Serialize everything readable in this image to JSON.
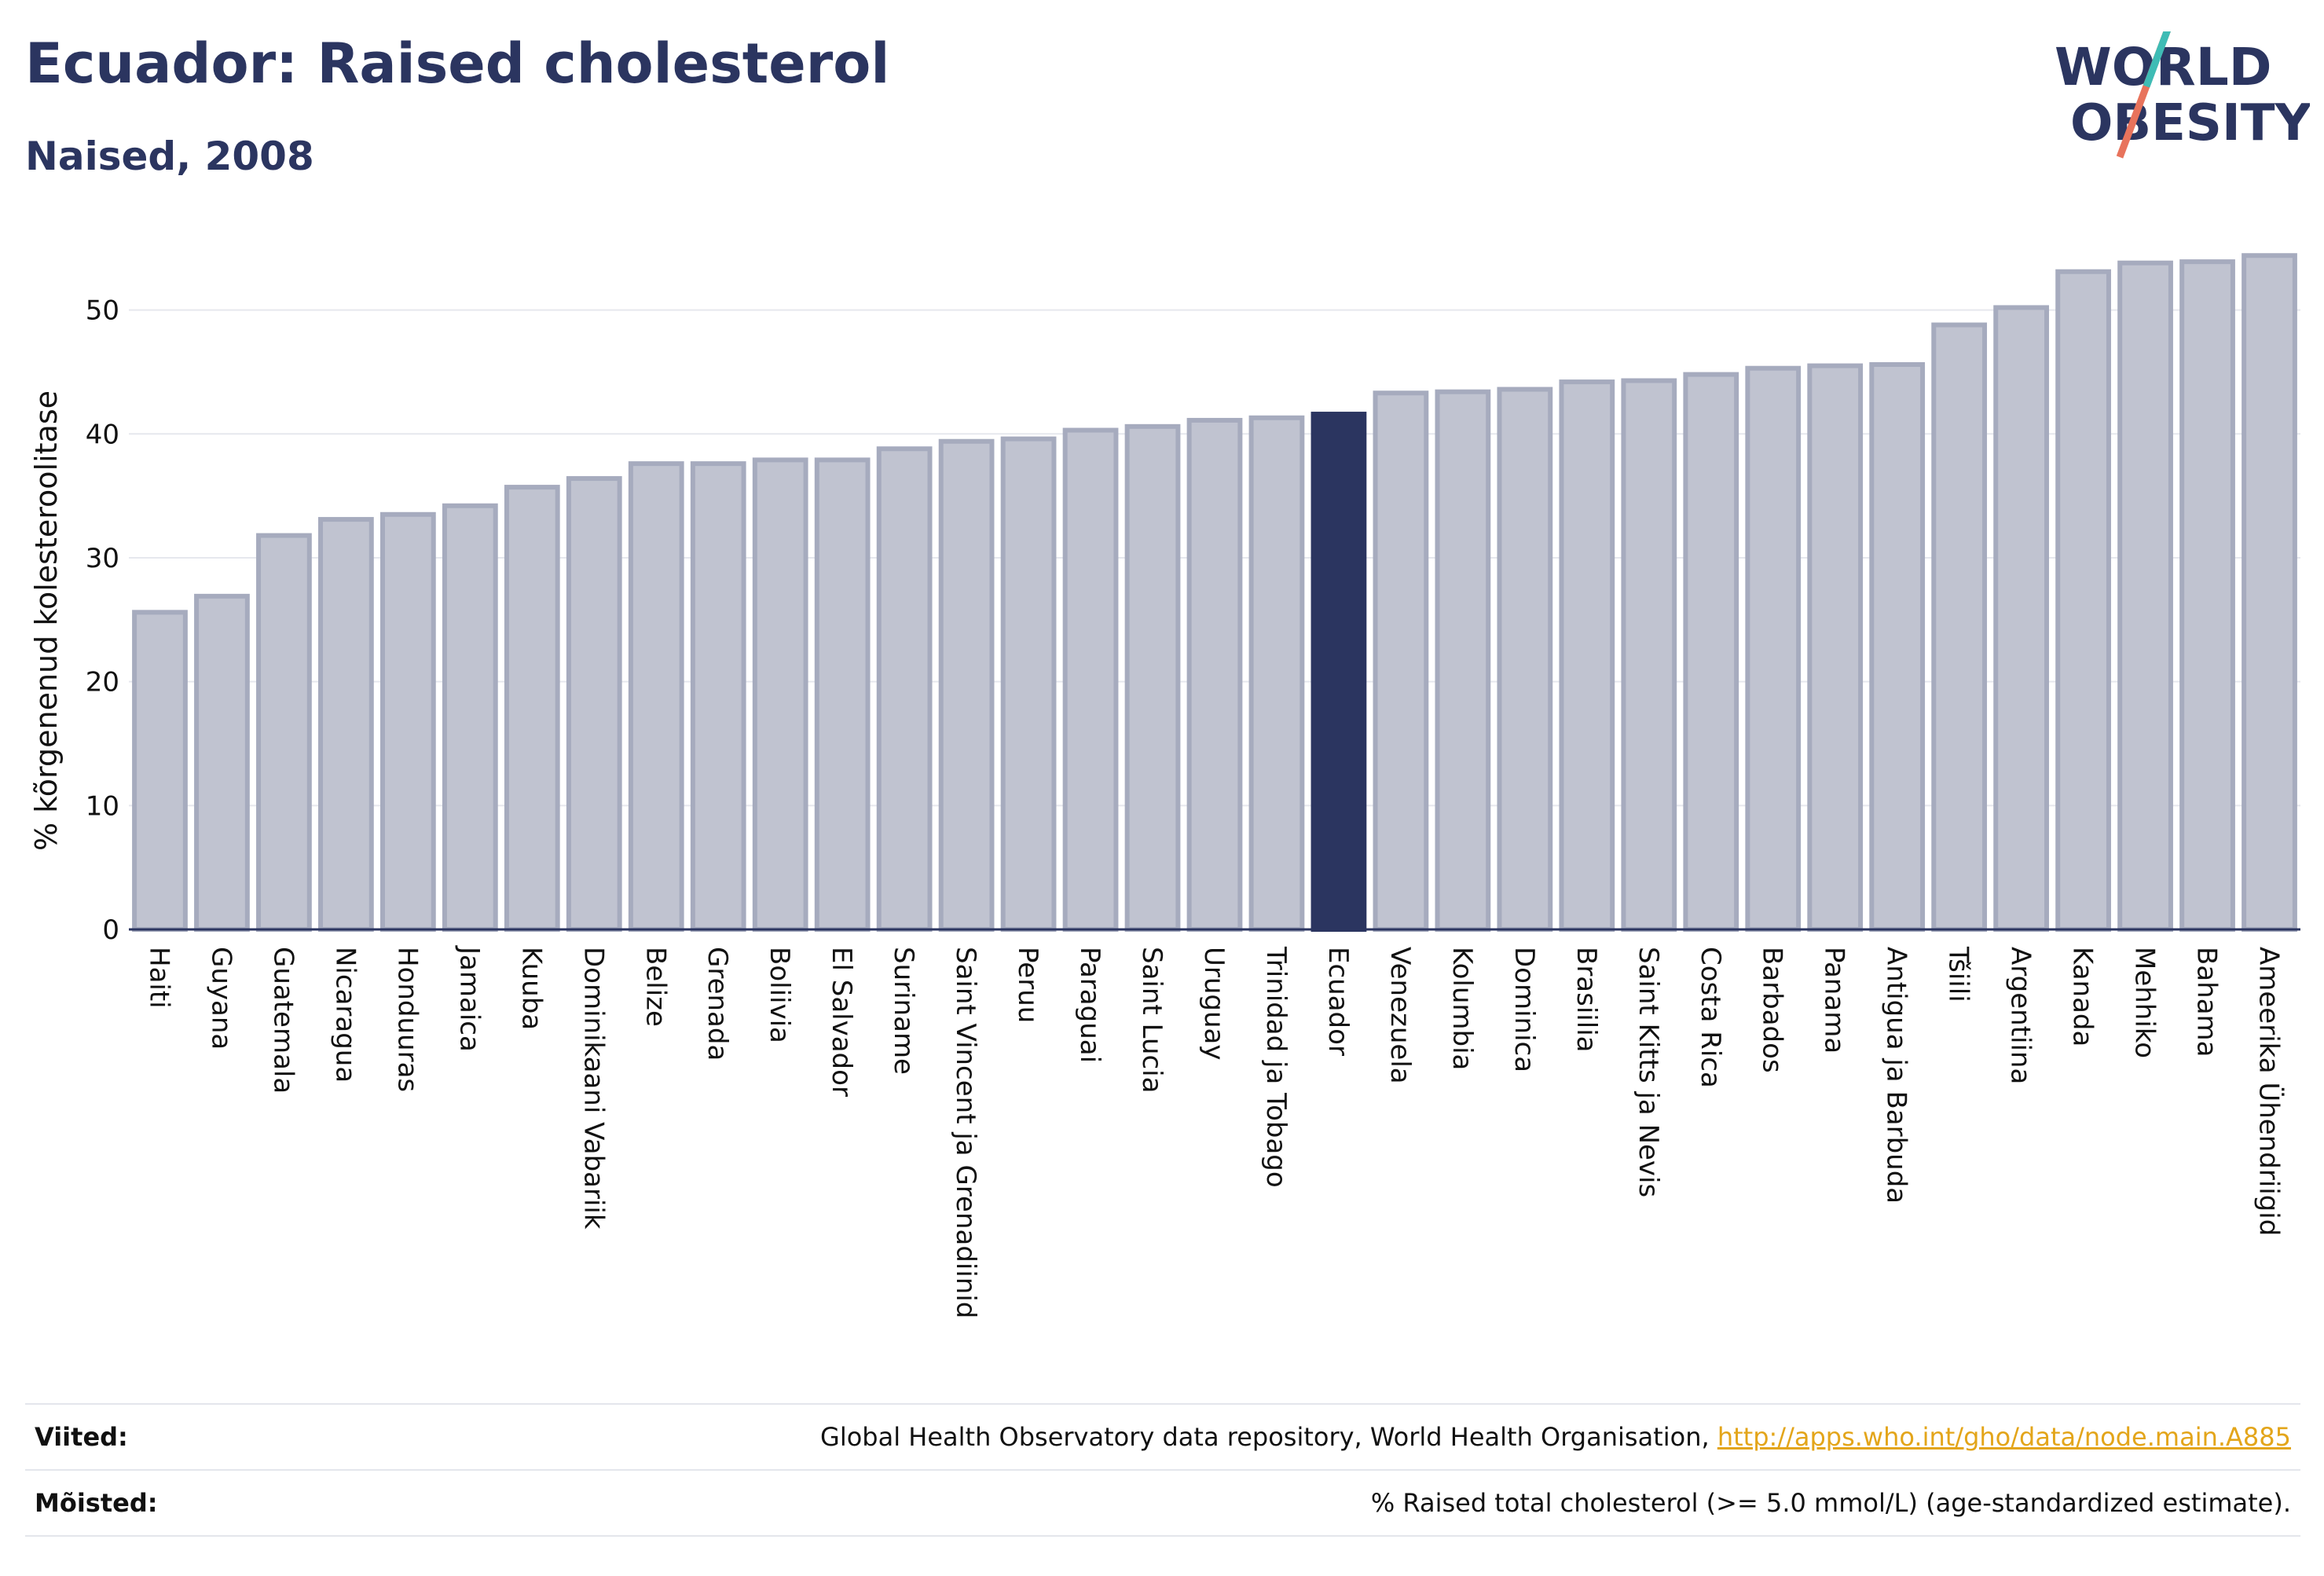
{
  "header": {
    "title": "Ecuador: Raised cholesterol",
    "subtitle": "Naised, 2008",
    "logo_line1": "WORLD",
    "logo_line2": "OBESITY"
  },
  "chart_data": {
    "type": "bar",
    "title": "Ecuador: Raised cholesterol",
    "subtitle": "Naised, 2008",
    "xlabel": "",
    "ylabel": "% kõrgenenud kolesteroolitase",
    "ylim": [
      0,
      56
    ],
    "yticks": [
      0,
      10,
      20,
      30,
      40,
      50
    ],
    "grid": true,
    "highlight": "Ecuador",
    "colors": {
      "bar": "#c0c3d0",
      "bar_edge": "#a6abbe",
      "highlight": "#2b3560",
      "grid": "#e6e8ee",
      "axis": "#2b3560"
    },
    "categories": [
      "Haiti",
      "Guyana",
      "Guatemala",
      "Nicaragua",
      "Honduuras",
      "Jamaica",
      "Kuuba",
      "Dominikaani Vabariik",
      "Belize",
      "Grenada",
      "Boliivia",
      "El Salvador",
      "Suriname",
      "Saint Vincent ja Grenadiinid",
      "Peruu",
      "Paraguai",
      "Saint Lucia",
      "Uruguay",
      "Trinidad ja Tobago",
      "Ecuador",
      "Venezuela",
      "Kolumbia",
      "Dominica",
      "Brasiilia",
      "Saint Kitts ja Nevis",
      "Costa Rica",
      "Barbados",
      "Panama",
      "Antigua ja Barbuda",
      "Tšiili",
      "Argentiina",
      "Kanada",
      "Mehhiko",
      "Bahama",
      "Ameerika Ühendriigid"
    ],
    "values": [
      25.6,
      26.9,
      31.8,
      33.1,
      33.5,
      34.2,
      35.7,
      36.4,
      37.6,
      37.6,
      37.9,
      37.9,
      38.8,
      39.4,
      39.6,
      40.3,
      40.6,
      41.1,
      41.3,
      41.6,
      43.3,
      43.4,
      43.6,
      44.2,
      44.3,
      44.8,
      45.3,
      45.5,
      45.6,
      48.8,
      50.2,
      53.1,
      53.8,
      53.9,
      54.4
    ]
  },
  "footer": {
    "sources_label": "Viited:",
    "sources_text": "Global Health Observatory data repository, World Health Organisation, ",
    "sources_link": "http://apps.who.int/gho/data/node.main.A885",
    "definitions_label": "Mõisted:",
    "definitions_text": "% Raised total cholesterol (>= 5.0 mmol/L) (age-standardized estimate)."
  }
}
